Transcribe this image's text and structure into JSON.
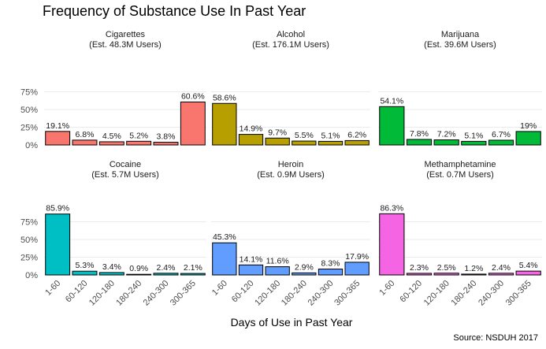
{
  "chart_data": {
    "type": "bar",
    "title": "Frequency of Substance Use In Past Year",
    "xlabel": "Days of Use in Past Year",
    "ylabel": "",
    "caption": "Source: NSDUH 2017",
    "categories": [
      "1-60",
      "60-120",
      "120-180",
      "180-240",
      "240-300",
      "300-365"
    ],
    "yticks": [
      "0%",
      "25%",
      "50%",
      "75%"
    ],
    "ylim": [
      0,
      100
    ],
    "legend": "none",
    "panels": [
      {
        "name": "Cigarettes",
        "users": "(Est. 48.3M Users)",
        "color": "#F8766D",
        "values": [
          19.1,
          6.8,
          4.5,
          5.2,
          3.8,
          60.6
        ],
        "labels": [
          "19.1%",
          "6.8%",
          "4.5%",
          "5.2%",
          "3.8%",
          "60.6%"
        ]
      },
      {
        "name": "Alcohol",
        "users": "(Est. 176.1M Users)",
        "color": "#B79F00",
        "values": [
          58.6,
          14.9,
          9.7,
          5.5,
          5.1,
          6.2
        ],
        "labels": [
          "58.6%",
          "14.9%",
          "9.7%",
          "5.5%",
          "5.1%",
          "6.2%"
        ]
      },
      {
        "name": "Marijuana",
        "users": "(Est. 39.6M Users)",
        "color": "#00BA38",
        "values": [
          54.1,
          7.8,
          7.2,
          5.1,
          6.7,
          19
        ],
        "labels": [
          "54.1%",
          "7.8%",
          "7.2%",
          "5.1%",
          "6.7%",
          "19%"
        ]
      },
      {
        "name": "Cocaine",
        "users": "(Est. 5.7M Users)",
        "color": "#00BFC4",
        "values": [
          85.9,
          5.3,
          3.4,
          0.9,
          2.4,
          2.1
        ],
        "labels": [
          "85.9%",
          "5.3%",
          "3.4%",
          "0.9%",
          "2.4%",
          "2.1%"
        ]
      },
      {
        "name": "Heroin",
        "users": "(Est. 0.9M Users)",
        "color": "#619CFF",
        "values": [
          45.3,
          14.1,
          11.6,
          2.9,
          8.3,
          17.9
        ],
        "labels": [
          "45.3%",
          "14.1%",
          "11.6%",
          "2.9%",
          "8.3%",
          "17.9%"
        ]
      },
      {
        "name": "Methamphetamine",
        "users": "(Est. 0.7M Users)",
        "color": "#F564E3",
        "values": [
          86.3,
          2.3,
          2.5,
          1.2,
          2.4,
          5.4
        ],
        "labels": [
          "86.3%",
          "2.3%",
          "2.5%",
          "1.2%",
          "2.4%",
          "5.4%"
        ]
      }
    ]
  }
}
